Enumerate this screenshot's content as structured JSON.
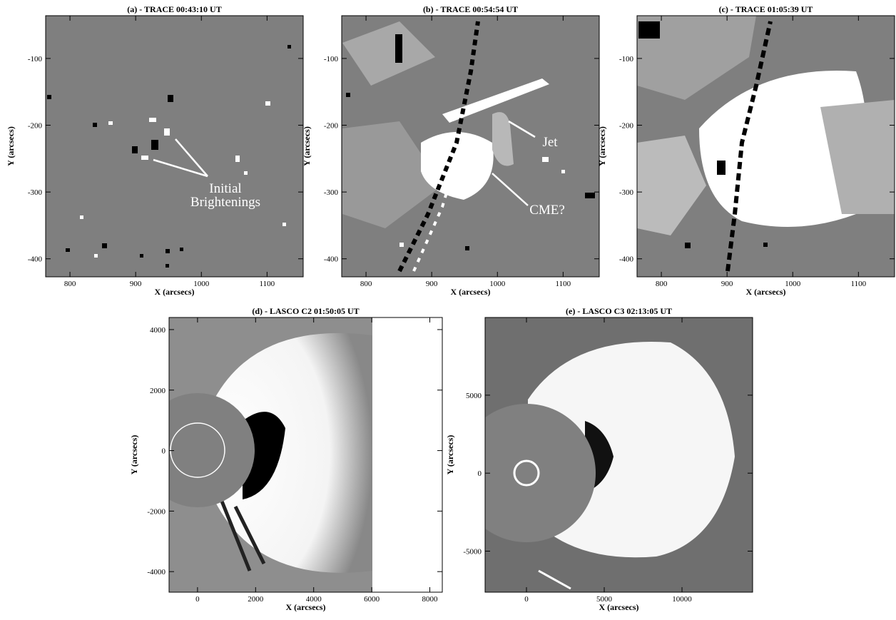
{
  "panels": [
    {
      "title": "(a) - TRACE 00:43:10 UT",
      "xlabel": "X (arcsecs)",
      "ylabel": "Y (arcsecs)",
      "xlim": [
        763,
        1155
      ],
      "ylim": [
        -427,
        -36
      ],
      "xticks": [
        800,
        900,
        1000,
        1100
      ],
      "yticks": [
        -400,
        -300,
        -200,
        -100
      ],
      "annotations": [
        "Initial",
        "Brightenings"
      ]
    },
    {
      "title": "(b) - TRACE 00:54:54 UT",
      "xlabel": "X (arcsecs)",
      "ylabel": "Y (arcsecs)",
      "xlim": [
        763,
        1155
      ],
      "ylim": [
        -427,
        -36
      ],
      "xticks": [
        800,
        900,
        1000,
        1100
      ],
      "yticks": [
        -400,
        -300,
        -200,
        -100
      ],
      "annotations": [
        "Jet",
        "CME?"
      ]
    },
    {
      "title": "(c) - TRACE 01:05:39 UT",
      "xlabel": "X (arcsecs)",
      "ylabel": "Y (arcsecs)",
      "xlim": [
        763,
        1155
      ],
      "ylim": [
        -427,
        -36
      ],
      "xticks": [
        800,
        900,
        1000,
        1100
      ],
      "yticks": [
        -400,
        -300,
        -200,
        -100
      ],
      "annotations": []
    },
    {
      "title": "(d) - LASCO C2 01:50:05 UT",
      "xlabel": "X (arcsecs)",
      "ylabel": "Y (arcsecs)",
      "xlim": [
        -980,
        8430
      ],
      "ylim": [
        -4680,
        4400
      ],
      "xticks": [
        0,
        2000,
        4000,
        6000,
        8000
      ],
      "yticks": [
        -4000,
        -2000,
        0,
        2000,
        4000
      ],
      "annotations": []
    },
    {
      "title": "(e) - LASCO C3 02:13:05 UT",
      "xlabel": "X (arcsecs)",
      "ylabel": "Y (arcsecs)",
      "xlim": [
        -2660,
        14540
      ],
      "ylim": [
        -7630,
        9980
      ],
      "xticks": [
        0,
        5000,
        10000
      ],
      "yticks": [
        -5000,
        0,
        5000
      ],
      "annotations": []
    }
  ]
}
